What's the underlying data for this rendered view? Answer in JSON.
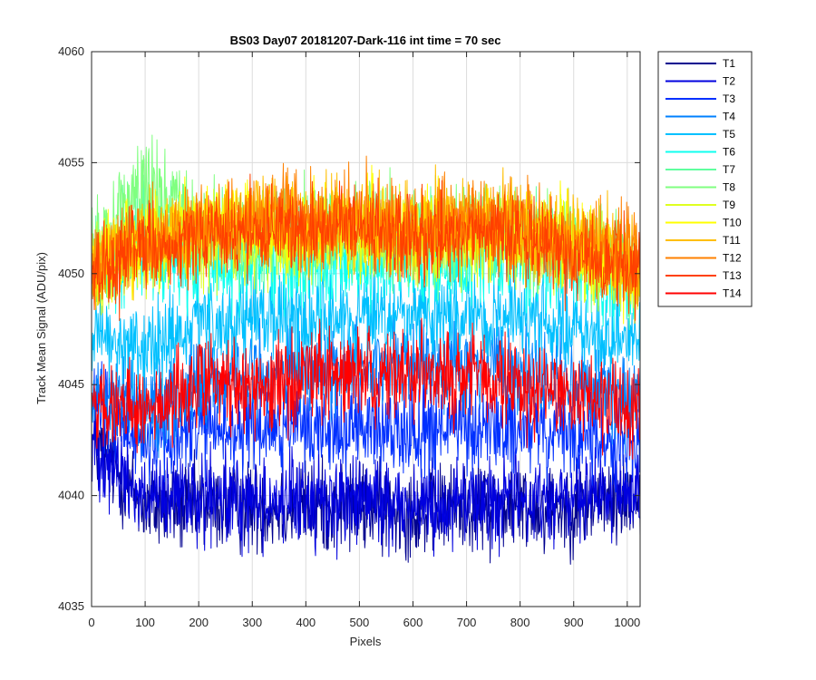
{
  "chart_data": {
    "type": "line",
    "title": "BS03 Day07 20181207-Dark-116 int time = 70 sec",
    "xlabel": "Pixels",
    "ylabel": "Track Mean Signal (ADU/pix)",
    "xlim": [
      0,
      1024
    ],
    "ylim": [
      4035,
      4060
    ],
    "xticks": [
      0,
      100,
      200,
      300,
      400,
      500,
      600,
      700,
      800,
      900,
      1000
    ],
    "yticks": [
      4035,
      4040,
      4045,
      4050,
      4055,
      4060
    ],
    "grid": true,
    "legend_position": "outside-top-right",
    "x_sample_points": [
      0,
      100,
      200,
      300,
      400,
      500,
      600,
      700,
      800,
      900,
      1024
    ],
    "series": [
      {
        "name": "T1",
        "color": "#00008f",
        "values": [
          4042.5,
          4039.5,
          4039.5,
          4039.5,
          4039.5,
          4039.5,
          4039.3,
          4039.5,
          4039.5,
          4039.5,
          4040.0
        ]
      },
      {
        "name": "T2",
        "color": "#0000df",
        "values": [
          4042.5,
          4039.8,
          4039.8,
          4039.8,
          4039.8,
          4039.8,
          4039.6,
          4039.8,
          4039.8,
          4039.8,
          4040.3
        ]
      },
      {
        "name": "T3",
        "color": "#0030ff",
        "values": [
          4044.0,
          4042.5,
          4043.0,
          4043.0,
          4043.0,
          4043.0,
          4043.0,
          4043.0,
          4043.0,
          4042.5,
          4042.5
        ]
      },
      {
        "name": "T4",
        "color": "#0080ff",
        "values": [
          4045.0,
          4044.0,
          4045.0,
          4045.5,
          4045.5,
          4046.0,
          4046.0,
          4046.0,
          4045.5,
          4045.0,
          4044.5
        ]
      },
      {
        "name": "T5",
        "color": "#00c0ff",
        "values": [
          4047.0,
          4046.5,
          4047.5,
          4048.0,
          4048.0,
          4048.0,
          4048.0,
          4048.0,
          4048.0,
          4047.5,
          4046.5
        ]
      },
      {
        "name": "T6",
        "color": "#10ffef",
        "values": [
          4049.5,
          4051.0,
          4050.5,
          4050.5,
          4050.5,
          4050.5,
          4050.5,
          4050.5,
          4050.5,
          4050.5,
          4049.5
        ]
      },
      {
        "name": "T7",
        "color": "#60ff9f",
        "values": [
          4050.5,
          4052.5,
          4051.5,
          4051.5,
          4051.5,
          4051.5,
          4051.5,
          4051.5,
          4051.5,
          4051.0,
          4050.0
        ]
      },
      {
        "name": "T8",
        "color": "#80ff80",
        "values": [
          4051.0,
          4054.0,
          4052.0,
          4052.0,
          4052.0,
          4052.0,
          4052.0,
          4052.0,
          4052.0,
          4051.5,
          4050.5
        ]
      },
      {
        "name": "T9",
        "color": "#dfff20",
        "values": [
          4050.0,
          4051.0,
          4051.5,
          4051.5,
          4051.5,
          4051.5,
          4051.5,
          4051.5,
          4051.5,
          4051.0,
          4049.5
        ]
      },
      {
        "name": "T10",
        "color": "#ffff00",
        "values": [
          4050.5,
          4051.5,
          4052.0,
          4052.0,
          4052.0,
          4052.0,
          4052.0,
          4052.0,
          4052.0,
          4051.5,
          4050.0
        ]
      },
      {
        "name": "T11",
        "color": "#ffbf00",
        "values": [
          4050.5,
          4051.5,
          4052.0,
          4052.5,
          4052.0,
          4052.5,
          4052.0,
          4052.5,
          4052.0,
          4051.5,
          4050.5
        ]
      },
      {
        "name": "T12",
        "color": "#ff8000",
        "values": [
          4050.5,
          4051.5,
          4052.0,
          4052.5,
          4052.5,
          4052.5,
          4052.0,
          4052.5,
          4052.0,
          4051.5,
          4050.5
        ]
      },
      {
        "name": "T13",
        "color": "#ff4000",
        "values": [
          4050.0,
          4051.0,
          4051.5,
          4052.0,
          4052.0,
          4052.0,
          4051.5,
          4052.0,
          4051.5,
          4051.0,
          4050.0
        ]
      },
      {
        "name": "T14",
        "color": "#ff0000",
        "values": [
          4044.0,
          4044.0,
          4045.0,
          4045.0,
          4045.5,
          4045.5,
          4045.5,
          4045.5,
          4045.0,
          4044.5,
          4044.0
        ]
      }
    ]
  }
}
